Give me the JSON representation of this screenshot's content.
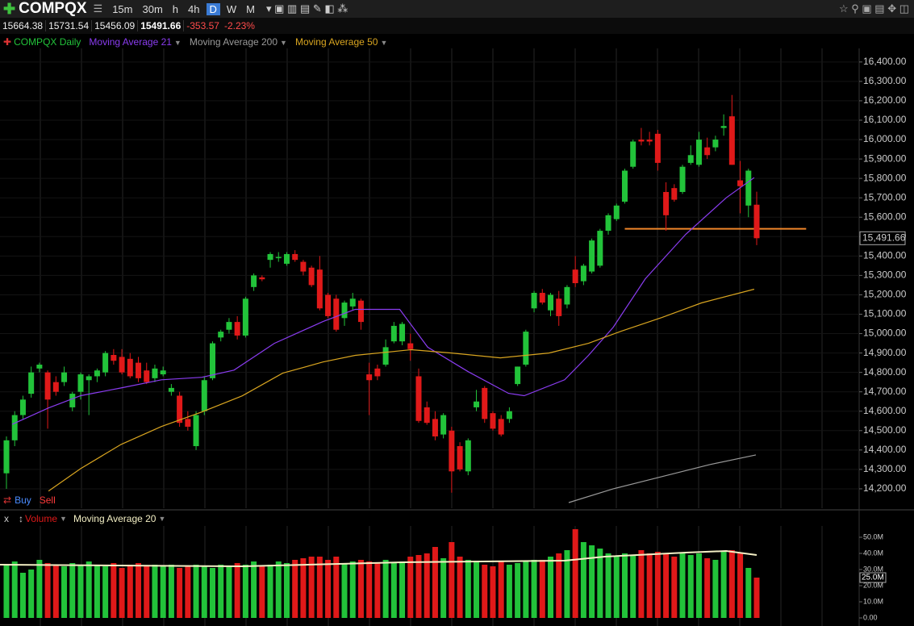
{
  "chart_data": {
    "type": "candlestick",
    "title": "COMPQX",
    "intervals": [
      "15m",
      "30m",
      "h",
      "4h",
      "D",
      "W",
      "M"
    ],
    "active_interval": 4,
    "quote": {
      "open": "15664.38",
      "high": "15731.54",
      "low": "15456.09",
      "close": "15491.66",
      "change": "-353.57",
      "change_pct": "-2.23%"
    },
    "series_name": "COMPQX Daily",
    "up_color": "#22c33a",
    "down_color": "#e01919",
    "open": [
      14280,
      14450,
      14580,
      14690,
      14820,
      14800,
      14750,
      14750,
      14620,
      14700,
      14760,
      14780,
      14800,
      14890,
      14880,
      14870,
      14850,
      14810,
      14770,
      14790,
      14700,
      14680,
      14560,
      14420,
      14600,
      14770,
      14980,
      15020,
      15060,
      14990,
      15240,
      15290,
      15380,
      15390,
      15360,
      15410,
      15370,
      15340,
      15330,
      15200,
      15180,
      15080,
      15140,
      15170,
      14790,
      14820,
      14840,
      14960,
      14960,
      14950,
      14780,
      14620,
      14560,
      14480,
      14500,
      14420,
      14290,
      14620,
      14720,
      14590,
      14560,
      14560,
      14740,
      14840,
      15130,
      15210,
      15120,
      15180,
      15150,
      15330,
      15270,
      15320,
      15350,
      15530,
      15590,
      15680,
      15860,
      16000,
      16000,
      16030,
      15730,
      15750,
      15730,
      15880,
      15870,
      15960,
      15960,
      16060,
      16120,
      15790,
      15660,
      15664.38
    ],
    "high": [
      14470,
      14600,
      14680,
      14830,
      14850,
      14810,
      14780,
      14830,
      14700,
      14800,
      14790,
      14820,
      14910,
      14920,
      14920,
      14900,
      14880,
      14850,
      14840,
      14830,
      14740,
      14700,
      14600,
      14600,
      14780,
      14960,
      15020,
      15080,
      15090,
      15190,
      15310,
      15300,
      15420,
      15420,
      15420,
      15430,
      15380,
      15350,
      15400,
      15210,
      15200,
      15170,
      15210,
      15180,
      14850,
      14840,
      14970,
      15060,
      15060,
      15000,
      14820,
      14650,
      14600,
      14590,
      14520,
      14440,
      14460,
      14710,
      14730,
      14600,
      14580,
      14620,
      14830,
      15020,
      15220,
      15230,
      15210,
      15220,
      15250,
      15400,
      15360,
      15490,
      15540,
      15620,
      15670,
      15850,
      16000,
      16060,
      16040,
      16050,
      15780,
      15770,
      15870,
      15970,
      16040,
      16010,
      16020,
      16130,
      16230,
      15890,
      15850,
      15731.54
    ],
    "low": [
      14200,
      14420,
      14560,
      14670,
      14800,
      14510,
      14680,
      14730,
      14600,
      14660,
      14580,
      14750,
      14780,
      14840,
      14790,
      14770,
      14750,
      14740,
      14750,
      14780,
      14680,
      14520,
      14500,
      14400,
      14580,
      14760,
      14960,
      15000,
      14970,
      14980,
      15220,
      15270,
      15340,
      15370,
      15350,
      15370,
      15300,
      15240,
      15120,
      15080,
      15010,
      15040,
      15120,
      15020,
      14580,
      14760,
      14830,
      14950,
      14940,
      14860,
      14540,
      14530,
      14450,
      14460,
      14180,
      14290,
      14270,
      14600,
      14540,
      14500,
      14470,
      14540,
      14730,
      14830,
      15110,
      15150,
      15090,
      15040,
      15130,
      15240,
      15250,
      15310,
      15340,
      15510,
      15580,
      15670,
      15850,
      15970,
      15970,
      15840,
      15530,
      15680,
      15720,
      15870,
      15860,
      15900,
      15940,
      16020,
      15870,
      15620,
      15600,
      15456.09
    ],
    "close": [
      14450,
      14580,
      14660,
      14800,
      14840,
      14660,
      14700,
      14800,
      14690,
      14790,
      14780,
      14810,
      14900,
      14860,
      14800,
      14780,
      14770,
      14750,
      14820,
      14810,
      14720,
      14540,
      14520,
      14580,
      14760,
      14950,
      15010,
      15060,
      14990,
      15180,
      15300,
      15280,
      15410,
      15395,
      15410,
      15380,
      15320,
      15250,
      15130,
      15090,
      15020,
      15160,
      15180,
      15060,
      14760,
      14780,
      14930,
      15040,
      15050,
      14920,
      14550,
      14540,
      14470,
      14580,
      14290,
      14300,
      14450,
      14650,
      14560,
      14510,
      14480,
      14600,
      14830,
      15010,
      15210,
      15160,
      15200,
      15090,
      15240,
      15260,
      15350,
      15480,
      15530,
      15610,
      15660,
      15840,
      15990,
      15990,
      15990,
      15880,
      15610,
      15690,
      15860,
      15920,
      16000,
      15920,
      16000,
      16070,
      15870,
      15760,
      15840,
      15491.66
    ],
    "ylim": [
      14100,
      16470
    ],
    "yticks": [
      {
        "value": 14200,
        "label": "14,200.00"
      },
      {
        "value": 14300,
        "label": "14,300.00"
      },
      {
        "value": 14400,
        "label": "14,400.00"
      },
      {
        "value": 14500,
        "label": "14,500.00"
      },
      {
        "value": 14600,
        "label": "14,600.00"
      },
      {
        "value": 14700,
        "label": "14,700.00"
      },
      {
        "value": 14800,
        "label": "14,800.00"
      },
      {
        "value": 14900,
        "label": "14,900.00"
      },
      {
        "value": 15000,
        "label": "15,000.00"
      },
      {
        "value": 15100,
        "label": "15,100.00"
      },
      {
        "value": 15200,
        "label": "15,200.00"
      },
      {
        "value": 15300,
        "label": "15,300.00"
      },
      {
        "value": 15400,
        "label": "15,400.00"
      },
      {
        "value": 15500,
        "label": "15,500.00"
      },
      {
        "value": 15600,
        "label": "15,600.00"
      },
      {
        "value": 15700,
        "label": "15,700.00"
      },
      {
        "value": 15800,
        "label": "15,800.00"
      },
      {
        "value": 15900,
        "label": "15,900.00"
      },
      {
        "value": 16000,
        "label": "16,000.00"
      },
      {
        "value": 16100,
        "label": "16,100.00"
      },
      {
        "value": 16200,
        "label": "16,200.00"
      },
      {
        "value": 16300,
        "label": "16,300.00"
      },
      {
        "value": 16400,
        "label": "16,400.00"
      }
    ],
    "last_price": {
      "value": 15491.66,
      "label": "15,491.66"
    },
    "level_line": {
      "value": 15540,
      "color": "#f0862a",
      "x": [
        75,
        97
      ]
    },
    "moving_averages": [
      {
        "name": "Moving Average 21",
        "color": "#8a3cf0",
        "x": [
          0.7,
          5.1,
          9.0,
          13.9,
          18.8,
          23.7,
          27.6,
          32.5,
          38.4,
          42.3,
          47.7,
          51.1,
          56.0,
          60.9,
          62.8,
          67.7,
          70.6,
          73.6,
          77.5,
          82.4,
          87.3,
          90.7
        ],
        "values": [
          14533,
          14617,
          14680,
          14720,
          14762,
          14775,
          14812,
          14950,
          15062,
          15125,
          15125,
          14930,
          14804,
          14692,
          14680,
          14762,
          14888,
          15033,
          15283,
          15512,
          15700,
          15804
        ]
      },
      {
        "name": "Moving Average 200",
        "color": "#9a9a9a",
        "x": [
          68.2,
          73.6,
          79.5,
          85.3,
          90.9
        ],
        "values": [
          14129,
          14200,
          14263,
          14325,
          14375
        ]
      },
      {
        "name": "Moving Average 50",
        "color": "#d9a520",
        "x": [
          5.1,
          9.0,
          13.9,
          18.8,
          23.7,
          28.6,
          33.5,
          38.4,
          42.3,
          49.1,
          54.0,
          59.9,
          65.8,
          70.6,
          74.6,
          79.5,
          84.3,
          90.7
        ],
        "values": [
          14188,
          14304,
          14429,
          14521,
          14596,
          14679,
          14796,
          14854,
          14888,
          14917,
          14900,
          14875,
          14900,
          14950,
          15013,
          15083,
          15158,
          15229
        ]
      }
    ],
    "trade_buttons": [
      "Buy",
      "Sell"
    ],
    "volume": {
      "close_label": "x",
      "name": "Volume",
      "values": [
        33,
        35,
        28,
        30,
        36,
        34,
        33,
        32,
        34,
        33,
        35,
        33,
        32,
        34,
        31,
        33,
        34,
        32,
        33,
        32,
        33,
        31,
        32,
        33,
        32,
        31,
        33,
        32,
        34,
        33,
        35,
        32,
        33,
        35,
        34,
        36,
        37,
        38,
        38,
        36,
        38,
        34,
        35,
        36,
        35,
        34,
        36,
        34,
        35,
        38,
        39,
        40,
        44,
        37,
        47,
        38,
        36,
        35,
        33,
        32,
        35,
        33,
        34,
        35,
        36,
        36,
        38,
        40,
        42,
        55,
        47,
        45,
        43,
        40,
        38,
        40,
        39,
        42,
        40,
        41,
        40,
        38,
        40,
        39,
        40,
        37,
        36,
        41,
        42,
        40,
        31,
        25
      ],
      "ylim": [
        -2,
        57
      ],
      "yticks": [
        {
          "value": 0,
          "label": "0.00"
        },
        {
          "value": 10,
          "label": "10.0M"
        },
        {
          "value": 20,
          "label": "20.0M"
        },
        {
          "value": 30,
          "label": "30.0M"
        },
        {
          "value": 40,
          "label": "40.0M"
        },
        {
          "value": 50,
          "label": "50.0M"
        }
      ],
      "last": {
        "value": 25,
        "label": "25.0M"
      },
      "ma": {
        "name": "Moving Average 20",
        "color": "#f3efc4",
        "x": [
          -0.8,
          28.6,
          48.1,
          67.7,
          72.6,
          82.4,
          87.3,
          91
        ],
        "values": [
          33,
          32,
          34.5,
          35.5,
          38,
          40.5,
          41.5,
          39
        ]
      }
    }
  }
}
